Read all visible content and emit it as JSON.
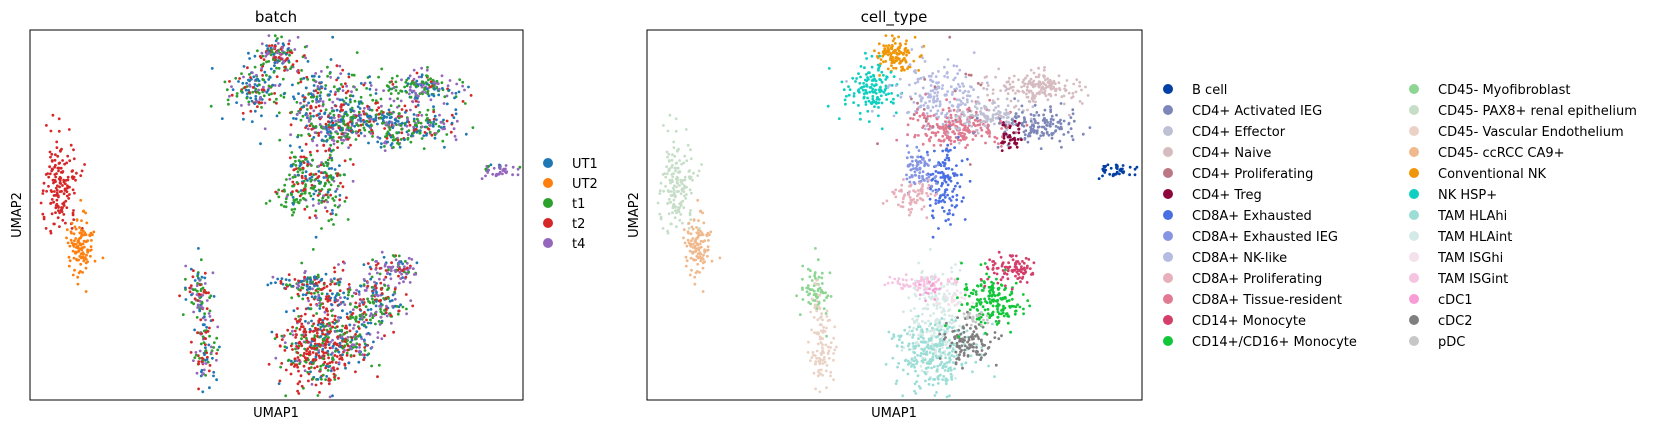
{
  "chart_data": [
    {
      "type": "scatter",
      "title": "batch",
      "xlabel": "UMAP1",
      "ylabel": "UMAP2",
      "grid": false,
      "legend_placement": "right",
      "legend": [
        {
          "name": "UT1",
          "color": "#1f77b4"
        },
        {
          "name": "UT2",
          "color": "#ff7f0e"
        },
        {
          "name": "t1",
          "color": "#2ca02c"
        },
        {
          "name": "t2",
          "color": "#d62728"
        },
        {
          "name": "t4",
          "color": "#9467bd"
        }
      ]
    },
    {
      "type": "scatter",
      "title": "cell_type",
      "xlabel": "UMAP1",
      "ylabel": "UMAP2",
      "grid": false,
      "legend_placement": "right",
      "legend": [
        {
          "name": "B cell",
          "color": "#023fa5"
        },
        {
          "name": "CD4+ Activated IEG",
          "color": "#7d87b9"
        },
        {
          "name": "CD4+ Effector",
          "color": "#bec1d4"
        },
        {
          "name": "CD4+ Naive",
          "color": "#d6bcc0"
        },
        {
          "name": "CD4+ Proliferating",
          "color": "#bb7784"
        },
        {
          "name": "CD4+ Treg",
          "color": "#8e063b"
        },
        {
          "name": "CD8A+ Exhausted",
          "color": "#4a6fe3"
        },
        {
          "name": "CD8A+ Exhausted IEG",
          "color": "#8595e1"
        },
        {
          "name": "CD8A+ NK-like",
          "color": "#b5bbe3"
        },
        {
          "name": "CD8A+ Proliferating",
          "color": "#e6afb9"
        },
        {
          "name": "CD8A+ Tissue-resident",
          "color": "#e07b91"
        },
        {
          "name": "CD14+ Monocyte",
          "color": "#d33f6a"
        },
        {
          "name": "CD14+/CD16+ Monocyte",
          "color": "#11c638"
        },
        {
          "name": "CD45- Myofibroblast",
          "color": "#8dd593"
        },
        {
          "name": "CD45- PAX8+ renal epithelium",
          "color": "#c6dec7"
        },
        {
          "name": "CD45- Vascular Endothelium",
          "color": "#ead3c6"
        },
        {
          "name": "CD45- ccRCC CA9+",
          "color": "#f0b98d"
        },
        {
          "name": "Conventional NK",
          "color": "#ef9708"
        },
        {
          "name": "NK HSP+",
          "color": "#0fcfc0"
        },
        {
          "name": "TAM HLAhi",
          "color": "#9cded6"
        },
        {
          "name": "TAM HLAint",
          "color": "#d5eae7"
        },
        {
          "name": "TAM ISGhi",
          "color": "#f3e1eb"
        },
        {
          "name": "TAM ISGint",
          "color": "#f6c4e1"
        },
        {
          "name": "cDC1",
          "color": "#f79cd4"
        },
        {
          "name": "cDC2",
          "color": "#7f7f7f"
        },
        {
          "name": "pDC",
          "color": "#c7c7c7"
        }
      ]
    }
  ]
}
